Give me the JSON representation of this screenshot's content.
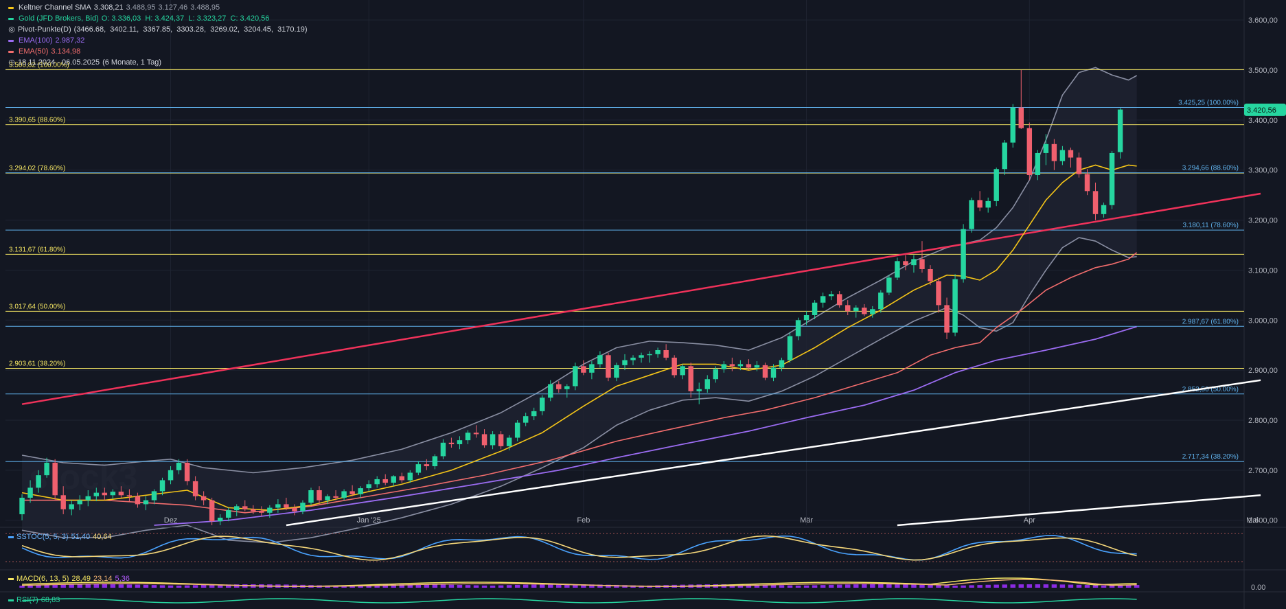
{
  "legend": {
    "keltner": {
      "name": "Keltner Channel SMA",
      "v1": "3.308,21",
      "v2": "3.488,95",
      "v3": "3.127,46",
      "v4": "3.488,95",
      "color": "#f5c518"
    },
    "gold": {
      "name": "Gold (JFD Brokers, Bid)",
      "ohlc": "O: 3.336,03  H: 3.424,37  L: 3.323,27  C: 3.420,56",
      "color": "#26d6a0"
    },
    "pivot": {
      "name": "Pivot-Punkte(D)",
      "values": "(3466.68,  3402.11,  3367.85,  3303.28,  3269.02,  3204.45,  3170.19)",
      "icon": "target-icon"
    },
    "ema100": {
      "name": "EMA(100)",
      "value": "2.987,32",
      "color": "#9b6cf2"
    },
    "ema50": {
      "name": "EMA(50)",
      "value": "3.134,98",
      "color": "#f26d6d"
    },
    "range": {
      "text": "18.11.2024 - 06.05.2025",
      "detail": "(6 Monate, 1 Tag)",
      "icon": "clock-icon"
    }
  },
  "sstoc": {
    "label": "SSTOC(5, 5, 3)",
    "v1": "51,40",
    "v2": "40,64"
  },
  "macd": {
    "label": "MACD(6, 13, 5)",
    "v1": "28,49",
    "v2": "23,14",
    "v3": "5,36"
  },
  "rsi": {
    "label": "RSI(7)",
    "v1": "68,83"
  },
  "macd_zero": "0.00",
  "current_price": "3.420,56",
  "watermark": "stock3",
  "colors": {
    "background": "#131722",
    "up": "#26d6a0",
    "down": "#f0606e",
    "fib_left": "#f5e663",
    "fib_right": "#5fb0ea",
    "trend_red": "#f0325a",
    "trend_white": "#ffffff",
    "ema50": "#f26d6d",
    "ema100": "#9b6cf2",
    "keltner_mid": "#f5c518",
    "keltner_band": "#8a8fa3"
  },
  "chart_data": {
    "type": "candlestick",
    "x_tick_labels": [
      "Dez",
      "Jan '25",
      "Feb",
      "Mär",
      "Apr",
      "Mai"
    ],
    "y_ticks": [
      "3.600,00",
      "3.500,00",
      "3.400,00",
      "3.300,00",
      "3.200,00",
      "3.100,00",
      "3.000,00",
      "2.900,00",
      "2.800,00",
      "2.700,00",
      "2.600,00"
    ],
    "y_tick_values": [
      3600,
      3500,
      3400,
      3300,
      3200,
      3100,
      3000,
      2900,
      2800,
      2700,
      2600
    ],
    "ylim": [
      2590,
      3640
    ],
    "fib_left": [
      {
        "label": "3.500,82 (100.00%)",
        "value": 3500.82
      },
      {
        "label": "3.390,65 (88.60%)",
        "value": 3390.65
      },
      {
        "label": "3.294,02 (78.60%)",
        "value": 3294.02
      },
      {
        "label": "3.131,67 (61.80%)",
        "value": 3131.67
      },
      {
        "label": "3.017,64 (50.00%)",
        "value": 3017.64
      },
      {
        "label": "2.903,61 (38.20%)",
        "value": 2903.61
      }
    ],
    "fib_right": [
      {
        "label": "3.425,25 (100.00%)",
        "value": 3425.25
      },
      {
        "label": "3.294,66 (88.60%)",
        "value": 3294.66
      },
      {
        "label": "3.180,11 (78.60%)",
        "value": 3180.11
      },
      {
        "label": "2.987,67 (61.80%)",
        "value": 2987.67
      },
      {
        "label": "2.852,50 (50.00%)",
        "value": 2852.5
      },
      {
        "label": "2.717,34 (38.20%)",
        "value": 2717.34
      }
    ],
    "trendlines": [
      {
        "name": "red",
        "from": [
          0,
          2832
        ],
        "to": [
          150,
          3253
        ]
      },
      {
        "name": "white-upper",
        "from": [
          32,
          2590
        ],
        "to": [
          150,
          2880
        ]
      },
      {
        "name": "white-lower",
        "from": [
          106,
          2590
        ],
        "to": [
          150,
          2650
        ]
      }
    ],
    "candles": [
      [
        2612,
        2652,
        2600,
        2645
      ],
      [
        2645,
        2680,
        2635,
        2665
      ],
      [
        2665,
        2700,
        2655,
        2690
      ],
      [
        2690,
        2725,
        2685,
        2715
      ],
      [
        2715,
        2722,
        2640,
        2650
      ],
      [
        2650,
        2668,
        2612,
        2622
      ],
      [
        2622,
        2640,
        2610,
        2632
      ],
      [
        2632,
        2650,
        2620,
        2640
      ],
      [
        2640,
        2660,
        2628,
        2648
      ],
      [
        2648,
        2665,
        2638,
        2655
      ],
      [
        2655,
        2665,
        2640,
        2650
      ],
      [
        2650,
        2662,
        2642,
        2657
      ],
      [
        2657,
        2668,
        2645,
        2650
      ],
      [
        2650,
        2662,
        2638,
        2648
      ],
      [
        2648,
        2655,
        2625,
        2632
      ],
      [
        2632,
        2648,
        2620,
        2640
      ],
      [
        2640,
        2662,
        2632,
        2658
      ],
      [
        2658,
        2685,
        2650,
        2680
      ],
      [
        2680,
        2708,
        2672,
        2700
      ],
      [
        2700,
        2722,
        2692,
        2715
      ],
      [
        2715,
        2722,
        2670,
        2678
      ],
      [
        2678,
        2688,
        2640,
        2648
      ],
      [
        2648,
        2658,
        2630,
        2640
      ],
      [
        2640,
        2645,
        2590,
        2598
      ],
      [
        2598,
        2612,
        2590,
        2605
      ],
      [
        2605,
        2625,
        2598,
        2620
      ],
      [
        2620,
        2632,
        2608,
        2628
      ],
      [
        2628,
        2640,
        2618,
        2622
      ],
      [
        2622,
        2630,
        2612,
        2618
      ],
      [
        2618,
        2628,
        2608,
        2615
      ],
      [
        2615,
        2630,
        2605,
        2625
      ],
      [
        2625,
        2642,
        2615,
        2632
      ],
      [
        2632,
        2645,
        2620,
        2625
      ],
      [
        2625,
        2632,
        2610,
        2618
      ],
      [
        2618,
        2640,
        2612,
        2635
      ],
      [
        2635,
        2665,
        2630,
        2660
      ],
      [
        2660,
        2668,
        2630,
        2640
      ],
      [
        2640,
        2652,
        2632,
        2648
      ],
      [
        2648,
        2660,
        2640,
        2645
      ],
      [
        2645,
        2662,
        2640,
        2658
      ],
      [
        2658,
        2670,
        2648,
        2652
      ],
      [
        2652,
        2668,
        2645,
        2664
      ],
      [
        2664,
        2680,
        2658,
        2672
      ],
      [
        2672,
        2688,
        2665,
        2682
      ],
      [
        2682,
        2692,
        2670,
        2675
      ],
      [
        2675,
        2690,
        2668,
        2688
      ],
      [
        2688,
        2695,
        2675,
        2680
      ],
      [
        2680,
        2700,
        2675,
        2695
      ],
      [
        2695,
        2718,
        2690,
        2712
      ],
      [
        2712,
        2722,
        2700,
        2708
      ],
      [
        2708,
        2732,
        2702,
        2728
      ],
      [
        2728,
        2762,
        2722,
        2755
      ],
      [
        2755,
        2765,
        2745,
        2752
      ],
      [
        2752,
        2768,
        2742,
        2760
      ],
      [
        2760,
        2780,
        2752,
        2775
      ],
      [
        2775,
        2790,
        2765,
        2772
      ],
      [
        2772,
        2782,
        2745,
        2750
      ],
      [
        2750,
        2778,
        2742,
        2772
      ],
      [
        2772,
        2778,
        2742,
        2748
      ],
      [
        2748,
        2770,
        2740,
        2765
      ],
      [
        2765,
        2800,
        2758,
        2795
      ],
      [
        2795,
        2815,
        2788,
        2808
      ],
      [
        2808,
        2825,
        2800,
        2818
      ],
      [
        2818,
        2850,
        2810,
        2845
      ],
      [
        2845,
        2880,
        2838,
        2872
      ],
      [
        2872,
        2878,
        2855,
        2862
      ],
      [
        2862,
        2872,
        2845,
        2868
      ],
      [
        2868,
        2915,
        2860,
        2908
      ],
      [
        2908,
        2920,
        2890,
        2895
      ],
      [
        2895,
        2918,
        2882,
        2912
      ],
      [
        2912,
        2938,
        2905,
        2930
      ],
      [
        2930,
        2935,
        2878,
        2885
      ],
      [
        2885,
        2915,
        2878,
        2910
      ],
      [
        2910,
        2932,
        2900,
        2920
      ],
      [
        2920,
        2930,
        2910,
        2925
      ],
      [
        2925,
        2935,
        2915,
        2930
      ],
      [
        2930,
        2938,
        2915,
        2932
      ],
      [
        2932,
        2945,
        2925,
        2940
      ],
      [
        2940,
        2952,
        2920,
        2925
      ],
      [
        2925,
        2930,
        2885,
        2890
      ],
      [
        2890,
        2912,
        2882,
        2908
      ],
      [
        2908,
        2915,
        2845,
        2858
      ],
      [
        2858,
        2875,
        2832,
        2862
      ],
      [
        2862,
        2890,
        2855,
        2882
      ],
      [
        2882,
        2908,
        2875,
        2902
      ],
      [
        2902,
        2918,
        2895,
        2912
      ],
      [
        2912,
        2925,
        2898,
        2908
      ],
      [
        2908,
        2920,
        2900,
        2912
      ],
      [
        2912,
        2922,
        2900,
        2905
      ],
      [
        2905,
        2918,
        2898,
        2910
      ],
      [
        2910,
        2915,
        2880,
        2885
      ],
      [
        2885,
        2912,
        2878,
        2905
      ],
      [
        2905,
        2925,
        2898,
        2920
      ],
      [
        2920,
        2975,
        2915,
        2968
      ],
      [
        2968,
        3005,
        2960,
        3000
      ],
      [
        3000,
        3018,
        2990,
        3010
      ],
      [
        3010,
        3040,
        3002,
        3035
      ],
      [
        3035,
        3055,
        3025,
        3048
      ],
      [
        3048,
        3058,
        3040,
        3052
      ],
      [
        3052,
        3058,
        3025,
        3030
      ],
      [
        3030,
        3040,
        3010,
        3018
      ],
      [
        3018,
        3030,
        3005,
        3025
      ],
      [
        3025,
        3032,
        3008,
        3012
      ],
      [
        3012,
        3028,
        3005,
        3022
      ],
      [
        3022,
        3060,
        3015,
        3055
      ],
      [
        3055,
        3090,
        3050,
        3085
      ],
      [
        3085,
        3125,
        3080,
        3118
      ],
      [
        3118,
        3130,
        3100,
        3110
      ],
      [
        3110,
        3130,
        3095,
        3122
      ],
      [
        3122,
        3158,
        3095,
        3102
      ],
      [
        3102,
        3110,
        3070,
        3078
      ],
      [
        3078,
        3085,
        3015,
        3030
      ],
      [
        3030,
        3045,
        2962,
        2975
      ],
      [
        2975,
        3092,
        2968,
        3082
      ],
      [
        3082,
        3192,
        3075,
        3182
      ],
      [
        3182,
        3245,
        3175,
        3240
      ],
      [
        3240,
        3258,
        3218,
        3225
      ],
      [
        3225,
        3245,
        3215,
        3238
      ],
      [
        3238,
        3305,
        3228,
        3302
      ],
      [
        3302,
        3360,
        3290,
        3355
      ],
      [
        3355,
        3432,
        3345,
        3425
      ],
      [
        3425,
        3500,
        3382,
        3384
      ],
      [
        3384,
        3395,
        3280,
        3290
      ],
      [
        3290,
        3340,
        3280,
        3334
      ],
      [
        3334,
        3372,
        3310,
        3352
      ],
      [
        3352,
        3362,
        3300,
        3318
      ],
      [
        3318,
        3348,
        3310,
        3340
      ],
      [
        3340,
        3345,
        3305,
        3325
      ],
      [
        3325,
        3335,
        3285,
        3292
      ],
      [
        3292,
        3302,
        3250,
        3258
      ],
      [
        3258,
        3275,
        3200,
        3212
      ],
      [
        3212,
        3235,
        3205,
        3230
      ],
      [
        3230,
        3338,
        3222,
        3334
      ],
      [
        3336,
        3424,
        3323,
        3421
      ]
    ],
    "ema50": [
      [
        0,
        2640
      ],
      [
        10,
        2640
      ],
      [
        20,
        2630
      ],
      [
        27,
        2615
      ],
      [
        35,
        2628
      ],
      [
        42,
        2648
      ],
      [
        48,
        2665
      ],
      [
        56,
        2690
      ],
      [
        64,
        2720
      ],
      [
        72,
        2758
      ],
      [
        78,
        2780
      ],
      [
        85,
        2805
      ],
      [
        90,
        2820
      ],
      [
        96,
        2845
      ],
      [
        101,
        2870
      ],
      [
        106,
        2895
      ],
      [
        110,
        2930
      ],
      [
        113,
        2945
      ],
      [
        116,
        2955
      ],
      [
        118,
        2985
      ],
      [
        121,
        3020
      ],
      [
        124,
        3060
      ],
      [
        127,
        3085
      ],
      [
        130,
        3105
      ],
      [
        132,
        3112
      ],
      [
        134,
        3122
      ],
      [
        135,
        3135
      ]
    ],
    "ema100": [
      [
        16,
        2590
      ],
      [
        25,
        2600
      ],
      [
        35,
        2620
      ],
      [
        45,
        2645
      ],
      [
        55,
        2672
      ],
      [
        65,
        2700
      ],
      [
        72,
        2725
      ],
      [
        80,
        2752
      ],
      [
        88,
        2778
      ],
      [
        95,
        2805
      ],
      [
        102,
        2830
      ],
      [
        108,
        2860
      ],
      [
        113,
        2895
      ],
      [
        118,
        2920
      ],
      [
        124,
        2940
      ],
      [
        130,
        2962
      ],
      [
        135,
        2987
      ]
    ],
    "keltner_mid": [
      [
        0,
        2655
      ],
      [
        5,
        2640
      ],
      [
        10,
        2640
      ],
      [
        15,
        2650
      ],
      [
        20,
        2660
      ],
      [
        25,
        2625
      ],
      [
        30,
        2620
      ],
      [
        35,
        2630
      ],
      [
        40,
        2650
      ],
      [
        46,
        2672
      ],
      [
        52,
        2700
      ],
      [
        58,
        2738
      ],
      [
        63,
        2775
      ],
      [
        68,
        2828
      ],
      [
        72,
        2868
      ],
      [
        76,
        2890
      ],
      [
        80,
        2912
      ],
      [
        84,
        2912
      ],
      [
        88,
        2900
      ],
      [
        92,
        2910
      ],
      [
        96,
        2945
      ],
      [
        100,
        2985
      ],
      [
        104,
        3020
      ],
      [
        108,
        3060
      ],
      [
        112,
        3090
      ],
      [
        114,
        3088
      ],
      [
        116,
        3080
      ],
      [
        118,
        3100
      ],
      [
        120,
        3140
      ],
      [
        122,
        3190
      ],
      [
        124,
        3240
      ],
      [
        126,
        3275
      ],
      [
        128,
        3300
      ],
      [
        130,
        3310
      ],
      [
        132,
        3300
      ],
      [
        134,
        3310
      ],
      [
        135,
        3308
      ]
    ],
    "keltner_upper": [
      [
        0,
        2730
      ],
      [
        5,
        2715
      ],
      [
        10,
        2710
      ],
      [
        15,
        2718
      ],
      [
        18,
        2722
      ],
      [
        22,
        2705
      ],
      [
        28,
        2695
      ],
      [
        34,
        2705
      ],
      [
        40,
        2720
      ],
      [
        46,
        2742
      ],
      [
        52,
        2775
      ],
      [
        58,
        2815
      ],
      [
        63,
        2860
      ],
      [
        68,
        2912
      ],
      [
        72,
        2945
      ],
      [
        76,
        2958
      ],
      [
        80,
        2955
      ],
      [
        84,
        2950
      ],
      [
        88,
        2940
      ],
      [
        92,
        2965
      ],
      [
        96,
        3005
      ],
      [
        100,
        3045
      ],
      [
        104,
        3080
      ],
      [
        108,
        3118
      ],
      [
        112,
        3145
      ],
      [
        116,
        3160
      ],
      [
        118,
        3185
      ],
      [
        120,
        3225
      ],
      [
        122,
        3280
      ],
      [
        124,
        3360
      ],
      [
        126,
        3450
      ],
      [
        128,
        3495
      ],
      [
        130,
        3505
      ],
      [
        132,
        3490
      ],
      [
        134,
        3480
      ],
      [
        135,
        3489
      ]
    ],
    "keltner_lower": [
      [
        0,
        2580
      ],
      [
        5,
        2565
      ],
      [
        10,
        2565
      ],
      [
        15,
        2580
      ],
      [
        20,
        2590
      ],
      [
        25,
        2560
      ],
      [
        30,
        2555
      ],
      [
        35,
        2565
      ],
      [
        40,
        2582
      ],
      [
        46,
        2605
      ],
      [
        52,
        2632
      ],
      [
        58,
        2668
      ],
      [
        63,
        2705
      ],
      [
        68,
        2745
      ],
      [
        72,
        2790
      ],
      [
        76,
        2820
      ],
      [
        80,
        2840
      ],
      [
        84,
        2845
      ],
      [
        88,
        2838
      ],
      [
        92,
        2858
      ],
      [
        96,
        2888
      ],
      [
        100,
        2925
      ],
      [
        104,
        2962
      ],
      [
        108,
        2998
      ],
      [
        112,
        3025
      ],
      [
        114,
        3010
      ],
      [
        116,
        2985
      ],
      [
        118,
        2978
      ],
      [
        120,
        2995
      ],
      [
        122,
        3050
      ],
      [
        124,
        3100
      ],
      [
        126,
        3145
      ],
      [
        128,
        3165
      ],
      [
        130,
        3158
      ],
      [
        132,
        3140
      ],
      [
        134,
        3125
      ],
      [
        135,
        3127
      ]
    ]
  }
}
